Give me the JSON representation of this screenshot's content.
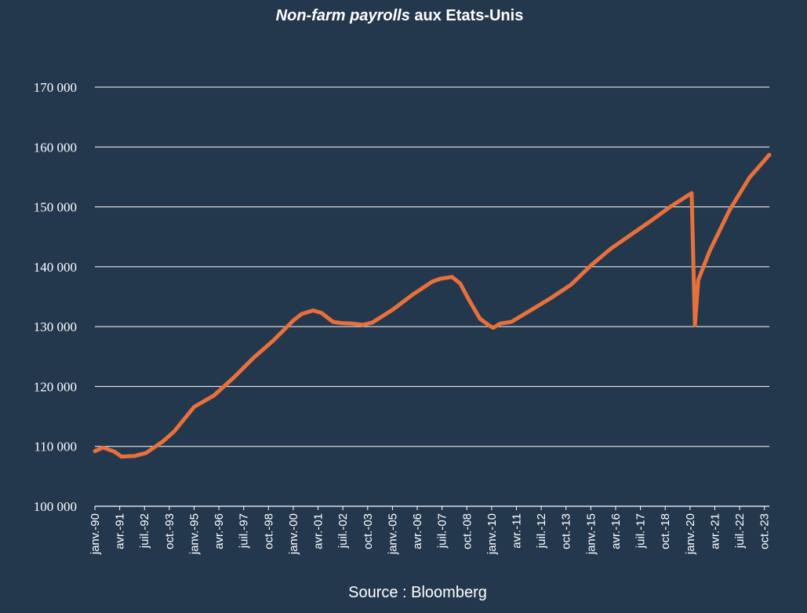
{
  "title": {
    "italic_part": "Non-farm payrolls",
    "rest": " aux Etats-Unis"
  },
  "source": "Source : Bloomberg",
  "colors": {
    "background": "#24384d",
    "line": "#e8703a",
    "grid": "#ffffff",
    "text": "#ffffff"
  },
  "chart_data": {
    "type": "line",
    "title": "Non-farm payrolls aux Etats-Unis",
    "xlabel": "",
    "ylabel": "",
    "ylim": [
      100000,
      170000
    ],
    "y_ticks": [
      100000,
      110000,
      120000,
      130000,
      140000,
      150000,
      160000,
      170000
    ],
    "y_tick_labels": [
      "100 000",
      "110 000",
      "120 000",
      "130 000",
      "140 000",
      "150 000",
      "160 000",
      "170 000"
    ],
    "x_range": [
      "1990-01",
      "2024-01"
    ],
    "x_tick_labels": [
      {
        "date": "1990-01",
        "label": "janv.-90"
      },
      {
        "date": "1991-04",
        "label": "avr.-91"
      },
      {
        "date": "1992-07",
        "label": "juil.-92"
      },
      {
        "date": "1993-10",
        "label": "oct.-93"
      },
      {
        "date": "1995-01",
        "label": "janv.-95"
      },
      {
        "date": "1996-04",
        "label": "avr.-96"
      },
      {
        "date": "1997-07",
        "label": "juil.-97"
      },
      {
        "date": "1998-10",
        "label": "oct.-98"
      },
      {
        "date": "2000-01",
        "label": "janv.-00"
      },
      {
        "date": "2001-04",
        "label": "avr.-01"
      },
      {
        "date": "2002-07",
        "label": "juil.-02"
      },
      {
        "date": "2003-10",
        "label": "oct.-03"
      },
      {
        "date": "2005-01",
        "label": "janv.-05"
      },
      {
        "date": "2006-04",
        "label": "avr.-06"
      },
      {
        "date": "2007-07",
        "label": "juil.-07"
      },
      {
        "date": "2008-10",
        "label": "oct.-08"
      },
      {
        "date": "2010-01",
        "label": "janv.-10"
      },
      {
        "date": "2011-04",
        "label": "avr.-11"
      },
      {
        "date": "2012-07",
        "label": "juil.-12"
      },
      {
        "date": "2013-10",
        "label": "oct.-13"
      },
      {
        "date": "2015-01",
        "label": "janv.-15"
      },
      {
        "date": "2016-04",
        "label": "avr.-16"
      },
      {
        "date": "2017-07",
        "label": "juil.-17"
      },
      {
        "date": "2018-10",
        "label": "oct.-18"
      },
      {
        "date": "2020-01",
        "label": "janv.-20"
      },
      {
        "date": "2021-04",
        "label": "avr.-21"
      },
      {
        "date": "2022-07",
        "label": "juil.-22"
      },
      {
        "date": "2023-10",
        "label": "oct.-23"
      }
    ],
    "grid": "horizontal",
    "legend": "none",
    "series": [
      {
        "values": [
          {
            "x": "1990-01",
            "y": 109200
          },
          {
            "x": "1990-06",
            "y": 109800
          },
          {
            "x": "1991-01",
            "y": 109100
          },
          {
            "x": "1991-05",
            "y": 108300
          },
          {
            "x": "1992-01",
            "y": 108400
          },
          {
            "x": "1992-08",
            "y": 108900
          },
          {
            "x": "1993-06",
            "y": 110800
          },
          {
            "x": "1994-01",
            "y": 112500
          },
          {
            "x": "1995-01",
            "y": 116600
          },
          {
            "x": "1996-01",
            "y": 118500
          },
          {
            "x": "1997-01",
            "y": 121500
          },
          {
            "x": "1998-01",
            "y": 124800
          },
          {
            "x": "1999-01",
            "y": 127700
          },
          {
            "x": "2000-01",
            "y": 131000
          },
          {
            "x": "2000-06",
            "y": 132100
          },
          {
            "x": "2001-01",
            "y": 132700
          },
          {
            "x": "2001-06",
            "y": 132300
          },
          {
            "x": "2002-01",
            "y": 130800
          },
          {
            "x": "2002-06",
            "y": 130600
          },
          {
            "x": "2003-01",
            "y": 130500
          },
          {
            "x": "2003-07",
            "y": 130300
          },
          {
            "x": "2004-01",
            "y": 130700
          },
          {
            "x": "2005-01",
            "y": 132800
          },
          {
            "x": "2006-01",
            "y": 135300
          },
          {
            "x": "2007-01",
            "y": 137500
          },
          {
            "x": "2007-06",
            "y": 138000
          },
          {
            "x": "2008-01",
            "y": 138300
          },
          {
            "x": "2008-06",
            "y": 137200
          },
          {
            "x": "2008-11",
            "y": 134600
          },
          {
            "x": "2009-06",
            "y": 131300
          },
          {
            "x": "2009-12",
            "y": 130100
          },
          {
            "x": "2010-02",
            "y": 129800
          },
          {
            "x": "2010-06",
            "y": 130500
          },
          {
            "x": "2011-01",
            "y": 130800
          },
          {
            "x": "2012-01",
            "y": 132800
          },
          {
            "x": "2013-01",
            "y": 134800
          },
          {
            "x": "2014-01",
            "y": 137000
          },
          {
            "x": "2015-01",
            "y": 140200
          },
          {
            "x": "2016-01",
            "y": 143000
          },
          {
            "x": "2017-01",
            "y": 145300
          },
          {
            "x": "2018-01",
            "y": 147600
          },
          {
            "x": "2019-01",
            "y": 150000
          },
          {
            "x": "2020-02",
            "y": 152300
          },
          {
            "x": "2020-04",
            "y": 130200
          },
          {
            "x": "2020-06",
            "y": 137800
          },
          {
            "x": "2021-01",
            "y": 142700
          },
          {
            "x": "2022-01",
            "y": 149500
          },
          {
            "x": "2023-01",
            "y": 154900
          },
          {
            "x": "2024-01",
            "y": 158700
          }
        ]
      }
    ]
  }
}
